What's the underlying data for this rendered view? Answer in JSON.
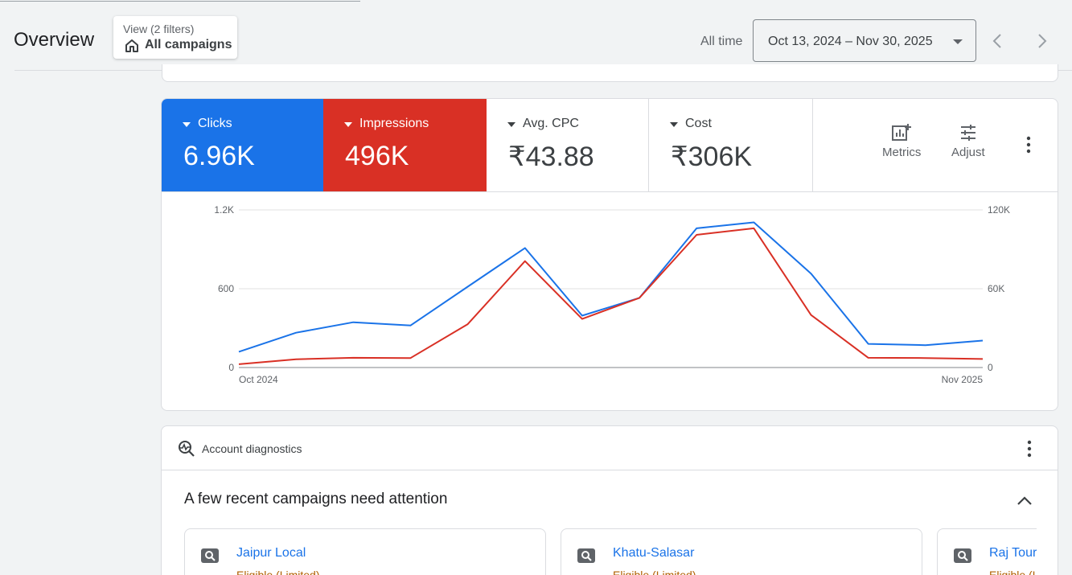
{
  "header": {
    "title": "Overview",
    "view_chip": {
      "subtitle": "View (2 filters)",
      "label": "All campaigns",
      "icon": "home-icon"
    },
    "time_label": "All time",
    "date_range": "Oct 13, 2024 – Nov 30, 2025"
  },
  "metrics": {
    "tiles": [
      {
        "label": "Clicks",
        "value": "6.96K",
        "color": "#1a73e8"
      },
      {
        "label": "Impressions",
        "value": "496K",
        "color": "#d93025"
      },
      {
        "label": "Avg. CPC",
        "value": "₹43.88"
      },
      {
        "label": "Cost",
        "value": "₹306K"
      }
    ],
    "tools": {
      "metrics_label": "Metrics",
      "adjust_label": "Adjust"
    }
  },
  "chart_data": {
    "type": "line",
    "x_start_label": "Oct 2024",
    "x_end_label": "Nov 2025",
    "left_axis": {
      "ticks": [
        "0",
        "600",
        "1.2K"
      ],
      "ylim": [
        0,
        1200
      ]
    },
    "right_axis": {
      "ticks": [
        "0",
        "60K",
        "120K"
      ],
      "ylim": [
        0,
        120000
      ]
    },
    "grid": true,
    "series": [
      {
        "name": "Clicks",
        "axis": "left",
        "color": "#1a73e8",
        "values": [
          120,
          265,
          345,
          320,
          615,
          910,
          395,
          530,
          1060,
          1105,
          715,
          180,
          170,
          205
        ]
      },
      {
        "name": "Impressions",
        "axis": "right",
        "color": "#d93025",
        "values": [
          2500,
          6300,
          7400,
          7200,
          33000,
          81000,
          37000,
          53000,
          101000,
          106000,
          40000,
          7400,
          7200,
          6500
        ]
      }
    ]
  },
  "diagnostics": {
    "title": "Account diagnostics",
    "heading": "A few recent campaigns need attention",
    "campaigns": [
      {
        "name": "Jaipur Local",
        "status": "Eligible (Limited)"
      },
      {
        "name": "Khatu-Salasar",
        "status": "Eligible (Limited)"
      },
      {
        "name": "Raj Tour",
        "status": "Eligible (Limited)"
      }
    ]
  }
}
